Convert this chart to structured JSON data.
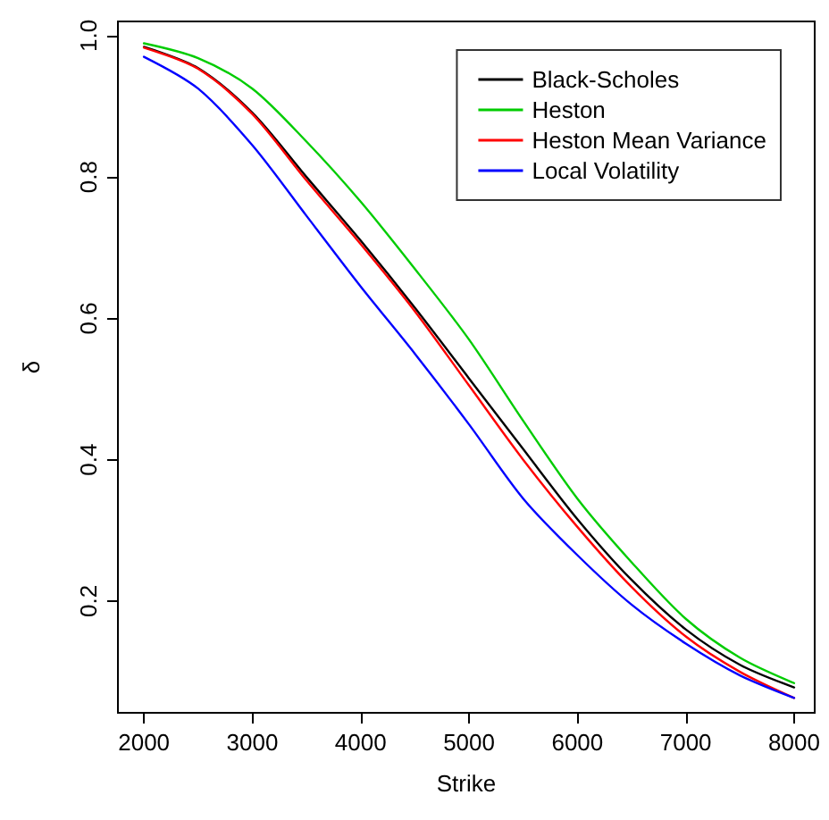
{
  "chart_data": {
    "type": "line",
    "xlabel": "Strike",
    "ylabel": "δ",
    "x": [
      2000,
      2500,
      3000,
      3500,
      4000,
      4500,
      5000,
      5500,
      6000,
      6500,
      7000,
      7500,
      8000
    ],
    "xlim": [
      1760,
      8190
    ],
    "ylim": [
      0.042,
      1.02
    ],
    "xticks": [
      2000,
      3000,
      4000,
      5000,
      6000,
      7000,
      8000
    ],
    "yticks": [
      0.2,
      0.4,
      0.6,
      0.8,
      {
        "value": 1,
        "label": "1.0"
      }
    ],
    "grid": false,
    "legend": "top right",
    "marker": "none",
    "line_style": "solid",
    "series": [
      {
        "name": "Black-Scholes",
        "color": "#000000",
        "values": [
          0.984,
          0.954,
          0.891,
          0.8,
          0.71,
          0.615,
          0.515,
          0.415,
          0.316,
          0.23,
          0.16,
          0.11,
          0.078
        ]
      },
      {
        "name": "Heston",
        "color": "#00cc00",
        "values": [
          0.989,
          0.968,
          0.925,
          0.85,
          0.765,
          0.67,
          0.57,
          0.455,
          0.345,
          0.255,
          0.175,
          0.12,
          0.084
        ]
      },
      {
        "name": "Heston Mean Variance",
        "color": "#ff0000",
        "values": [
          0.983,
          0.953,
          0.889,
          0.795,
          0.705,
          0.61,
          0.505,
          0.4,
          0.305,
          0.22,
          0.15,
          0.1,
          0.063
        ]
      },
      {
        "name": "Local Volatility",
        "color": "#0000ff",
        "values": [
          0.97,
          0.925,
          0.845,
          0.745,
          0.645,
          0.55,
          0.45,
          0.345,
          0.265,
          0.195,
          0.14,
          0.095,
          0.063
        ]
      }
    ]
  }
}
